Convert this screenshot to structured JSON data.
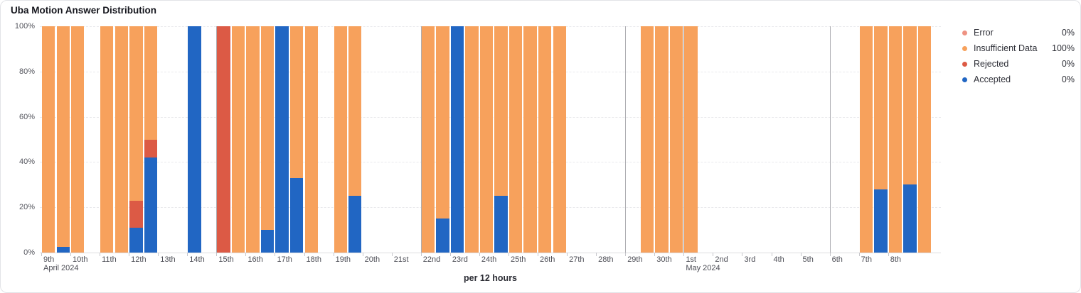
{
  "title": "Uba Motion Answer Distribution",
  "footer_label": "per 12 hours",
  "legend": {
    "items": [
      {
        "label": "Error",
        "value": "0%",
        "color": "#EE9282"
      },
      {
        "label": "Insufficient Data",
        "value": "100%",
        "color": "#F7A15C"
      },
      {
        "label": "Rejected",
        "value": "0%",
        "color": "#DC5A45"
      },
      {
        "label": "Accepted",
        "value": "0%",
        "color": "#2166C3"
      }
    ]
  },
  "chart_data": {
    "type": "bar",
    "stacked": true,
    "title": "Uba Motion Answer Distribution",
    "x_unit": "per 12 hours",
    "ylim": [
      0,
      100
    ],
    "y_ticks": [
      0,
      20,
      40,
      60,
      80,
      100
    ],
    "y_tick_suffix": "%",
    "grid": "horizontal-dashed",
    "legend_position": "right",
    "series_order_bottom_to_top": [
      "Accepted",
      "Rejected",
      "Insufficient Data",
      "Error"
    ],
    "colors": {
      "Accepted": "#2166C3",
      "Rejected": "#DC5A45",
      "Insufficient Data": "#F7A15C",
      "Error": "#EE9282"
    },
    "x_ticks": [
      {
        "label": "9th",
        "sub": "April 2024"
      },
      {
        "label": "10th"
      },
      {
        "label": "11th"
      },
      {
        "label": "12th"
      },
      {
        "label": "13th"
      },
      {
        "label": "14th"
      },
      {
        "label": "15th",
        "week_line": true
      },
      {
        "label": "16th"
      },
      {
        "label": "17th"
      },
      {
        "label": "18th"
      },
      {
        "label": "19th"
      },
      {
        "label": "20th"
      },
      {
        "label": "21st"
      },
      {
        "label": "22nd",
        "week_line": true
      },
      {
        "label": "23rd"
      },
      {
        "label": "24th"
      },
      {
        "label": "25th"
      },
      {
        "label": "26th"
      },
      {
        "label": "27th"
      },
      {
        "label": "28th"
      },
      {
        "label": "29th",
        "week_line": true
      },
      {
        "label": "30th"
      },
      {
        "label": "1st",
        "sub": "May 2024",
        "week_line": true
      },
      {
        "label": "2nd"
      },
      {
        "label": "3rd"
      },
      {
        "label": "4th"
      },
      {
        "label": "5th"
      },
      {
        "label": "6th",
        "week_line": true
      },
      {
        "label": "7th"
      },
      {
        "label": "8th"
      }
    ],
    "bucket_columns": [
      "time",
      "accepted_pct",
      "rejected_pct",
      "insufficient_data_pct",
      "error_pct"
    ],
    "buckets": [
      [
        "Apr 9 AM",
        0,
        0,
        100,
        0
      ],
      [
        "Apr 9 PM",
        2.5,
        0,
        97.5,
        0
      ],
      [
        "Apr 10 AM",
        0,
        0,
        100,
        0
      ],
      [
        "Apr 10 PM",
        null,
        null,
        null,
        null
      ],
      [
        "Apr 11 AM",
        0,
        0,
        100,
        0
      ],
      [
        "Apr 11 PM",
        0,
        0,
        100,
        0
      ],
      [
        "Apr 12 AM",
        11,
        12,
        77,
        0
      ],
      [
        "Apr 12 PM",
        42,
        8,
        50,
        0
      ],
      [
        "Apr 13 AM",
        null,
        null,
        null,
        null
      ],
      [
        "Apr 13 PM",
        null,
        null,
        null,
        null
      ],
      [
        "Apr 14 AM",
        100,
        0,
        0,
        0
      ],
      [
        "Apr 14 PM",
        null,
        null,
        null,
        null
      ],
      [
        "Apr 15 AM",
        0,
        100,
        0,
        0
      ],
      [
        "Apr 15 PM",
        0,
        0,
        100,
        0
      ],
      [
        "Apr 16 AM",
        0,
        0,
        100,
        0
      ],
      [
        "Apr 16 PM",
        10,
        0,
        90,
        0
      ],
      [
        "Apr 17 AM",
        100,
        0,
        0,
        0
      ],
      [
        "Apr 17 PM",
        33,
        0,
        67,
        0
      ],
      [
        "Apr 18 AM",
        0,
        0,
        100,
        0
      ],
      [
        "Apr 18 PM",
        null,
        null,
        null,
        null
      ],
      [
        "Apr 19 AM",
        0,
        0,
        100,
        0
      ],
      [
        "Apr 19 PM",
        25,
        0,
        75,
        0
      ],
      [
        "Apr 20 AM",
        null,
        null,
        null,
        null
      ],
      [
        "Apr 20 PM",
        null,
        null,
        null,
        null
      ],
      [
        "Apr 21 AM",
        null,
        null,
        null,
        null
      ],
      [
        "Apr 21 PM",
        null,
        null,
        null,
        null
      ],
      [
        "Apr 22 AM",
        0,
        0,
        100,
        0
      ],
      [
        "Apr 22 PM",
        15,
        0,
        85,
        0
      ],
      [
        "Apr 23 AM",
        100,
        0,
        0,
        0
      ],
      [
        "Apr 23 PM",
        0,
        0,
        100,
        0
      ],
      [
        "Apr 24 AM",
        0,
        0,
        100,
        0
      ],
      [
        "Apr 24 PM",
        25,
        0,
        75,
        0
      ],
      [
        "Apr 25 AM",
        0,
        0,
        100,
        0
      ],
      [
        "Apr 25 PM",
        0,
        0,
        100,
        0
      ],
      [
        "Apr 26 AM",
        0,
        0,
        100,
        0
      ],
      [
        "Apr 26 PM",
        0,
        0,
        100,
        0
      ],
      [
        "Apr 27 AM",
        null,
        null,
        null,
        null
      ],
      [
        "Apr 27 PM",
        null,
        null,
        null,
        null
      ],
      [
        "Apr 28 AM",
        null,
        null,
        null,
        null
      ],
      [
        "Apr 28 PM",
        null,
        null,
        null,
        null
      ],
      [
        "Apr 29 AM",
        null,
        null,
        null,
        null
      ],
      [
        "Apr 29 PM",
        0,
        0,
        100,
        0
      ],
      [
        "Apr 30 AM",
        0,
        0,
        100,
        0
      ],
      [
        "Apr 30 PM",
        0,
        0,
        100,
        0
      ],
      [
        "May 1 AM",
        0,
        0,
        100,
        0
      ],
      [
        "May 1 PM",
        null,
        null,
        null,
        null
      ],
      [
        "May 2 AM",
        null,
        null,
        null,
        null
      ],
      [
        "May 2 PM",
        null,
        null,
        null,
        null
      ],
      [
        "May 3 AM",
        null,
        null,
        null,
        null
      ],
      [
        "May 3 PM",
        null,
        null,
        null,
        null
      ],
      [
        "May 4 AM",
        null,
        null,
        null,
        null
      ],
      [
        "May 4 PM",
        null,
        null,
        null,
        null
      ],
      [
        "May 5 AM",
        null,
        null,
        null,
        null
      ],
      [
        "May 5 PM",
        null,
        null,
        null,
        null
      ],
      [
        "May 6 AM",
        null,
        null,
        null,
        null
      ],
      [
        "May 6 PM",
        null,
        null,
        null,
        null
      ],
      [
        "May 7 AM",
        0,
        0,
        100,
        0
      ],
      [
        "May 7 PM",
        28,
        0,
        72,
        0
      ],
      [
        "May 8 AM",
        0,
        0,
        100,
        0
      ],
      [
        "May 8 PM",
        30,
        0,
        70,
        0
      ],
      [
        "May 9 AM",
        0,
        0,
        100,
        0
      ]
    ]
  }
}
